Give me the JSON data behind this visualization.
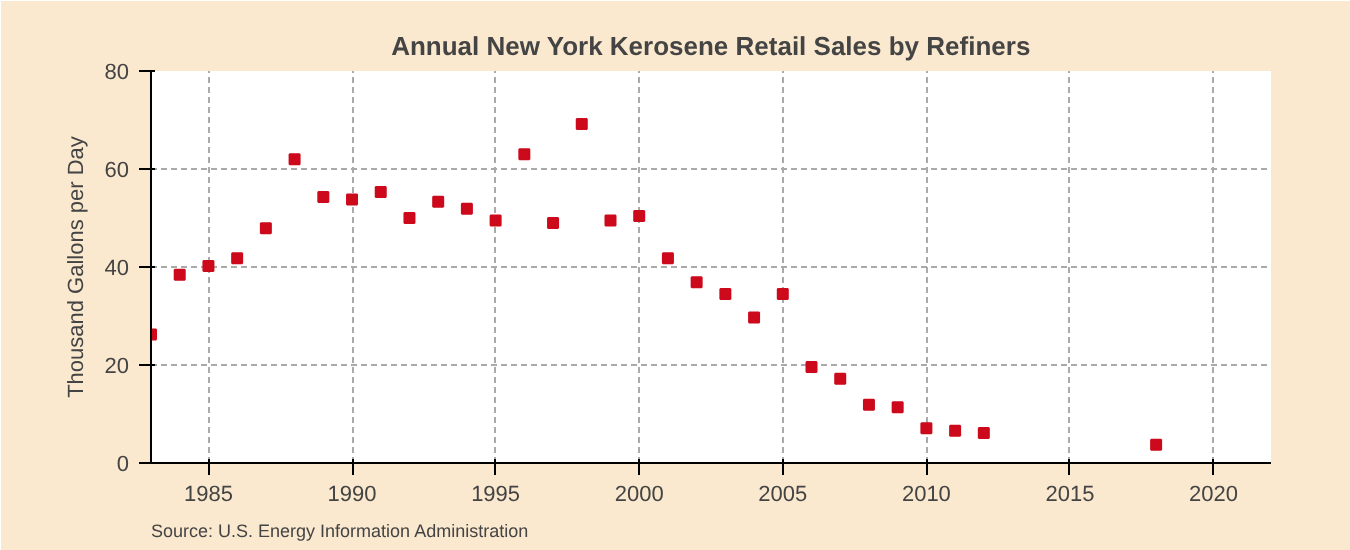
{
  "chart_data": {
    "type": "scatter",
    "title": "Annual New York Kerosene Retail Sales by Refiners",
    "ylabel": "Thousand Gallons per Day",
    "annotations": [
      "Source: U.S. Energy Information Administration"
    ],
    "x": [
      1983,
      1984,
      1985,
      1986,
      1987,
      1988,
      1989,
      1990,
      1991,
      1992,
      1993,
      1994,
      1995,
      1996,
      1997,
      1998,
      1999,
      2000,
      2001,
      2002,
      2003,
      2004,
      2005,
      2006,
      2007,
      2008,
      2009,
      2010,
      2011,
      2012,
      2018
    ],
    "series": [
      {
        "color": "#cc0a1c",
        "values": [
          26.2,
          38.4,
          40.2,
          41.8,
          47.9,
          62.0,
          54.3,
          53.8,
          55.3,
          50.0,
          53.3,
          51.9,
          49.5,
          63.0,
          49.0,
          69.2,
          49.5,
          50.4,
          41.8,
          36.9,
          34.5,
          29.7,
          34.5,
          19.6,
          17.2,
          11.9,
          11.4,
          7.1,
          6.6,
          6.1,
          3.7
        ]
      }
    ],
    "xlim": [
      1983,
      2022
    ],
    "xticks": [
      1985,
      1990,
      1995,
      2000,
      2005,
      2010,
      2015,
      2020
    ],
    "ylim": [
      0,
      80
    ],
    "yticks": [
      0,
      20,
      40,
      60,
      80
    ],
    "grid": true,
    "marker": "square"
  }
}
